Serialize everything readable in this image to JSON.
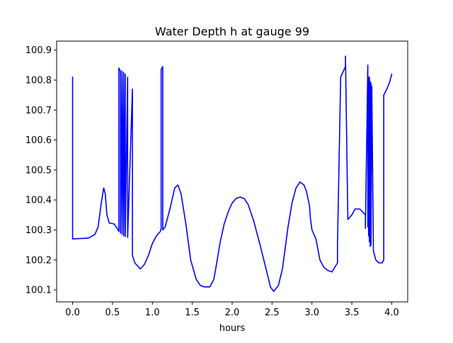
{
  "chart_data": {
    "type": "line",
    "title": "Water Depth h at gauge 99",
    "xlabel": "hours",
    "ylabel": "",
    "xlim": [
      -0.2,
      4.2
    ],
    "ylim": [
      100.06,
      100.93
    ],
    "x_ticks": [
      0.0,
      0.5,
      1.0,
      1.5,
      2.0,
      2.5,
      3.0,
      3.5,
      4.0
    ],
    "x_tick_labels": [
      "0.0",
      "0.5",
      "1.0",
      "1.5",
      "2.0",
      "2.5",
      "3.0",
      "3.5",
      "4.0"
    ],
    "y_ticks": [
      100.1,
      100.2,
      100.3,
      100.4,
      100.5,
      100.6,
      100.7,
      100.8,
      100.9
    ],
    "y_tick_labels": [
      "100.1",
      "100.2",
      "100.3",
      "100.4",
      "100.5",
      "100.6",
      "100.7",
      "100.8",
      "100.9"
    ],
    "grid": false,
    "series": [
      {
        "color": "#0000ff",
        "x": [
          0.0,
          0.0,
          0.2,
          0.28,
          0.32,
          0.36,
          0.39,
          0.41,
          0.43,
          0.46,
          0.52,
          0.56,
          0.58,
          0.58,
          0.6,
          0.6,
          0.62,
          0.62,
          0.64,
          0.64,
          0.66,
          0.66,
          0.69,
          0.69,
          0.75,
          0.75,
          0.78,
          0.85,
          0.9,
          0.95,
          1.0,
          1.05,
          1.1,
          1.11,
          1.11,
          1.13,
          1.13,
          1.16,
          1.22,
          1.28,
          1.32,
          1.36,
          1.42,
          1.48,
          1.55,
          1.6,
          1.65,
          1.72,
          1.77,
          1.8,
          1.85,
          1.9,
          1.95,
          2.0,
          2.05,
          2.1,
          2.15,
          2.2,
          2.27,
          2.35,
          2.42,
          2.48,
          2.52,
          2.58,
          2.63,
          2.7,
          2.75,
          2.8,
          2.85,
          2.9,
          2.93,
          2.97,
          2.98,
          3.0,
          3.05,
          3.1,
          3.15,
          3.2,
          3.25,
          3.32,
          3.32,
          3.36,
          3.42,
          3.42,
          3.45,
          3.5,
          3.54,
          3.6,
          3.67,
          3.67,
          3.7,
          3.7,
          3.71,
          3.71,
          3.72,
          3.72,
          3.73,
          3.73,
          3.74,
          3.74,
          3.75,
          3.77,
          3.8,
          3.84,
          3.88,
          3.9,
          3.9,
          3.93,
          3.97,
          4.0
        ],
        "y": [
          100.81,
          100.27,
          100.273,
          100.285,
          100.31,
          100.39,
          100.44,
          100.42,
          100.35,
          100.323,
          100.32,
          100.305,
          100.295,
          100.84,
          100.83,
          100.29,
          100.83,
          100.285,
          100.825,
          100.28,
          100.82,
          100.278,
          100.81,
          100.275,
          100.77,
          100.215,
          100.19,
          100.17,
          100.185,
          100.215,
          100.255,
          100.28,
          100.295,
          100.305,
          100.835,
          100.845,
          100.3,
          100.31,
          100.37,
          100.44,
          100.45,
          100.42,
          100.32,
          100.2,
          100.135,
          100.115,
          100.11,
          100.11,
          100.135,
          100.18,
          100.26,
          100.32,
          100.36,
          100.39,
          100.405,
          100.41,
          100.405,
          100.385,
          100.33,
          100.25,
          100.175,
          100.11,
          100.095,
          100.115,
          100.17,
          100.31,
          100.39,
          100.44,
          100.46,
          100.45,
          100.43,
          100.38,
          100.34,
          100.3,
          100.27,
          100.2,
          100.175,
          100.165,
          100.16,
          100.19,
          100.25,
          100.81,
          100.845,
          100.88,
          100.335,
          100.35,
          100.37,
          100.37,
          100.35,
          100.305,
          100.85,
          100.31,
          100.81,
          100.28,
          100.81,
          100.26,
          100.795,
          100.245,
          100.79,
          100.25,
          100.78,
          100.23,
          100.2,
          100.19,
          100.19,
          100.2,
          100.75,
          100.765,
          100.79,
          100.82
        ]
      }
    ]
  }
}
